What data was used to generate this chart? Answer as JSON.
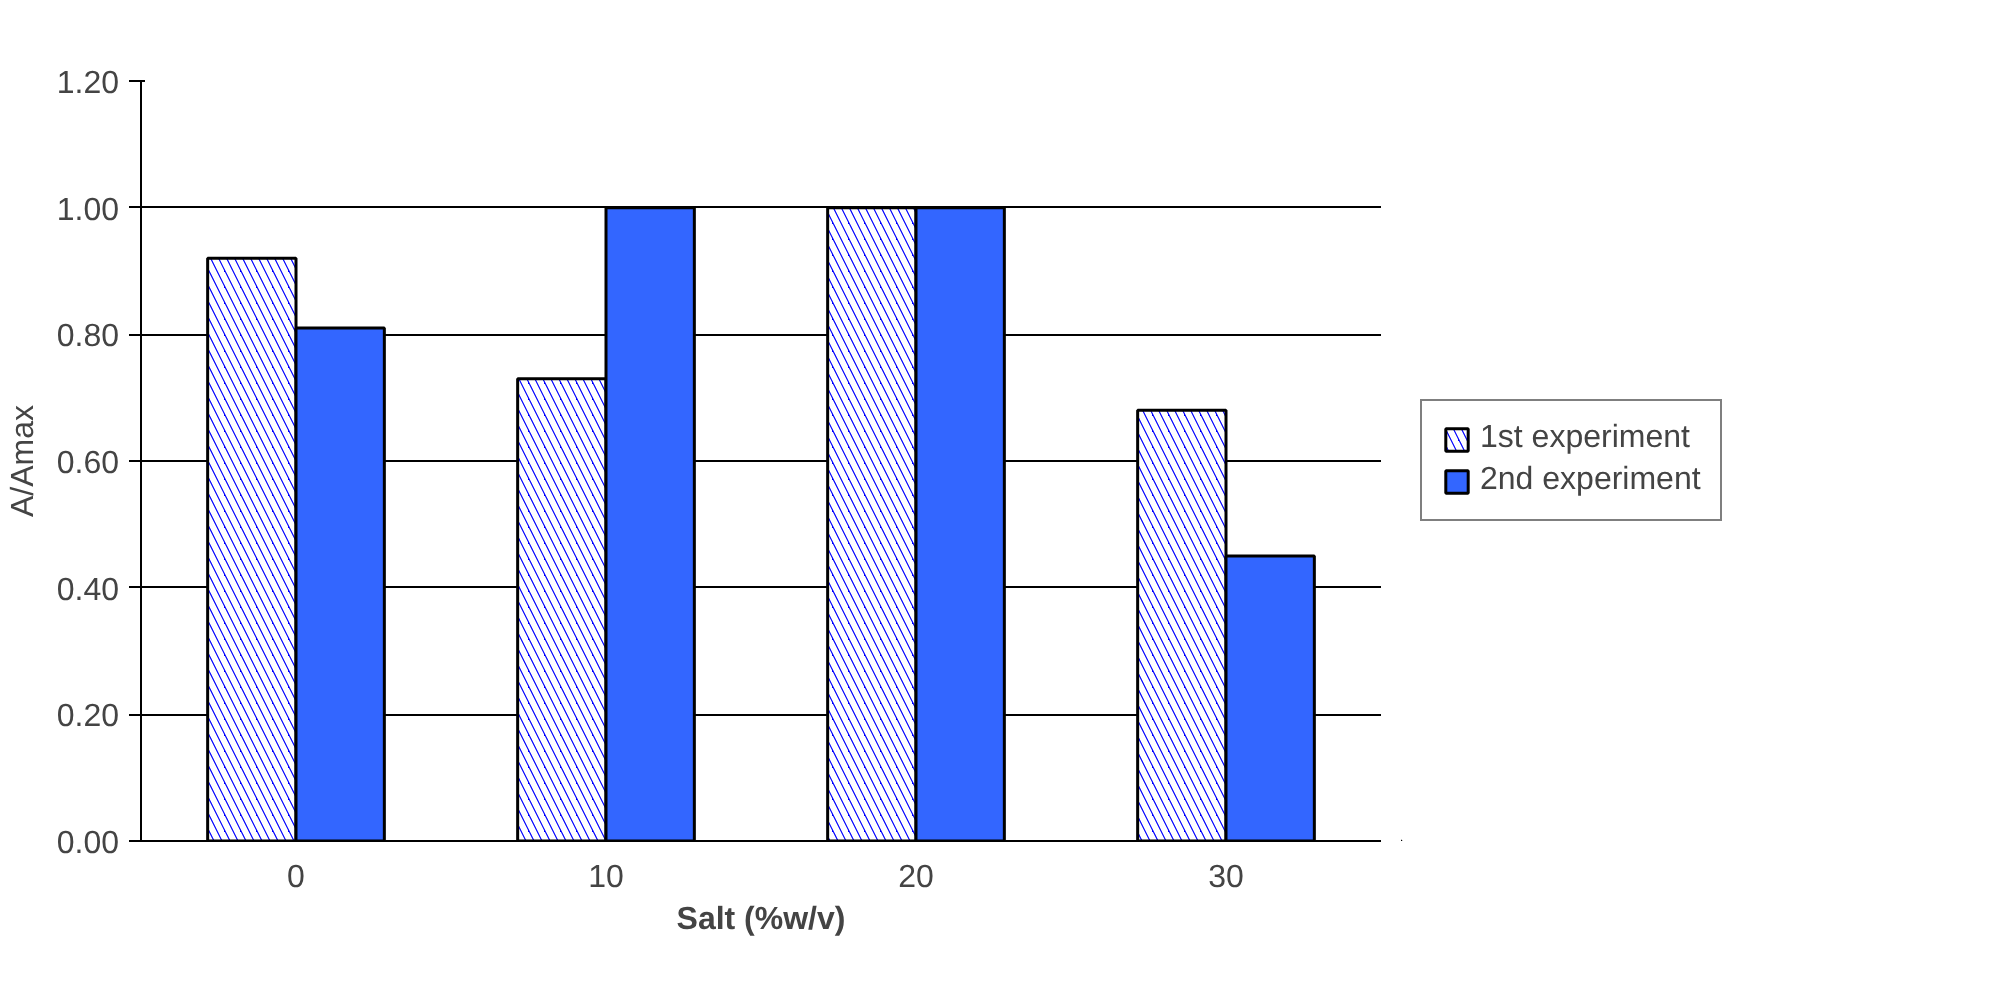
{
  "chart_data": {
    "type": "bar",
    "xlabel": "Salt (%w/v)",
    "ylabel": "A/Amax",
    "categories": [
      "0",
      "10",
      "20",
      "30"
    ],
    "series": [
      {
        "name": "1st experiment",
        "color": "#0000ff",
        "values": [
          0.92,
          0.73,
          1.0,
          0.68
        ]
      },
      {
        "name": "2nd experiment",
        "color": "#3366ff",
        "values": [
          0.81,
          1.0,
          1.0,
          0.45
        ]
      }
    ],
    "ylim": [
      0,
      1.2
    ],
    "yticks": [
      {
        "value": 0,
        "label": "0.00"
      },
      {
        "value": 0.2,
        "label": "0.20"
      },
      {
        "value": 0.4,
        "label": "0.40"
      },
      {
        "value": 0.6,
        "label": "0.60"
      },
      {
        "value": 0.8,
        "label": "0.80"
      },
      {
        "value": 1,
        "label": "1.00"
      },
      {
        "value": 1.2,
        "label": "1.20"
      }
    ],
    "grid": "y",
    "legend": "right"
  }
}
